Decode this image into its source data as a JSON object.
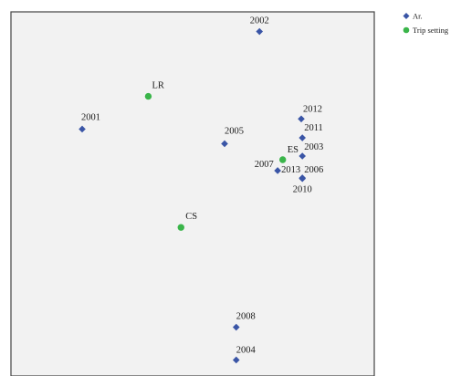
{
  "chart_data": {
    "type": "scatter",
    "title": "",
    "xlabel": "",
    "ylabel": "",
    "grid": false,
    "legend_position": "top-right",
    "colors": {
      "Ar": "#3a55a6",
      "Trip setting": "#3ab54a",
      "plot_bg": "#f2f2f2"
    },
    "series": [
      {
        "name": "Ar.",
        "marker": "diamond",
        "points": [
          {
            "label": "2002",
            "x": 0.684,
            "y": 0.054
          },
          {
            "label": "2001",
            "x": 0.196,
            "y": 0.322
          },
          {
            "label": "2005",
            "x": 0.588,
            "y": 0.362
          },
          {
            "label": "2012",
            "x": 0.799,
            "y": 0.294
          },
          {
            "label": "2011",
            "x": 0.802,
            "y": 0.346
          },
          {
            "label": "2003",
            "x": 0.802,
            "y": 0.396
          },
          {
            "label": "2013",
            "x": 0.734,
            "y": 0.436
          },
          {
            "label": "2006",
            "x": 0.802,
            "y": 0.456
          },
          {
            "label": "2010",
            "x": 0.802,
            "y": 0.458
          },
          {
            "label": "2008",
            "x": 0.62,
            "y": 0.866
          },
          {
            "label": "2004",
            "x": 0.62,
            "y": 0.956
          }
        ]
      },
      {
        "name": "Trip setting",
        "marker": "circle",
        "points": [
          {
            "label": "LR",
            "x": 0.378,
            "y": 0.232
          },
          {
            "label": "ES",
            "x": 0.748,
            "y": 0.406
          },
          {
            "label": "2007",
            "x": 0.748,
            "y": 0.406
          },
          {
            "label": "CS",
            "x": 0.468,
            "y": 0.592
          }
        ]
      }
    ]
  },
  "legend": [
    {
      "label": "Ar.",
      "series": 0
    },
    {
      "label": "Trip setting",
      "series": 1
    }
  ]
}
